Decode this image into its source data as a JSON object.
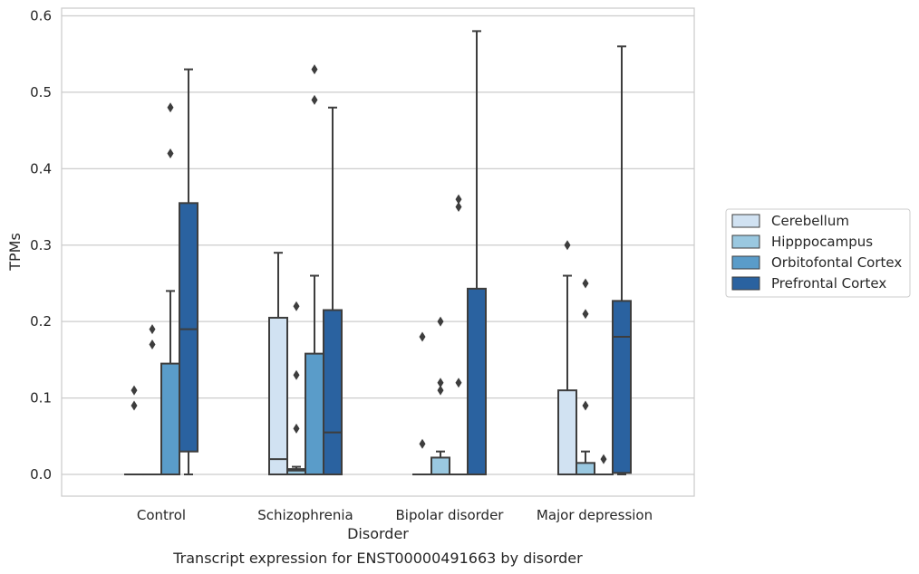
{
  "chart_data": {
    "type": "box",
    "title": "",
    "caption": "Transcript expression for ENST00000491663 by disorder",
    "xlabel": "Disorder",
    "ylabel": "TPMs",
    "ylim": [
      -0.03,
      0.61
    ],
    "yticks": [
      "0.0",
      "0.1",
      "0.2",
      "0.3",
      "0.4",
      "0.5",
      "0.6"
    ],
    "grid": "horizontal",
    "legend_placement": "right",
    "categories": [
      "Control",
      "Schizophrenia",
      "Bipolar disorder",
      "Major depression"
    ],
    "series": [
      {
        "name": "Cerebellum",
        "color": "#d1e2f2",
        "boxes": [
          {
            "q1": 0.0,
            "median": 0.0,
            "q3": 0.0,
            "whislo": 0.0,
            "whishi": 0.0,
            "fliers": [
              0.11,
              0.09
            ]
          },
          {
            "q1": 0.0,
            "median": 0.02,
            "q3": 0.205,
            "whislo": 0.0,
            "whishi": 0.29,
            "fliers": []
          },
          {
            "q1": 0.0,
            "median": 0.0,
            "q3": 0.0,
            "whislo": 0.0,
            "whishi": 0.0,
            "fliers": [
              0.18,
              0.04
            ]
          },
          {
            "q1": 0.0,
            "median": 0.0,
            "q3": 0.11,
            "whislo": 0.0,
            "whishi": 0.26,
            "fliers": [
              0.3
            ]
          }
        ]
      },
      {
        "name": "Hipppocampus",
        "color": "#9ac8e0",
        "boxes": [
          {
            "q1": 0.0,
            "median": 0.0,
            "q3": 0.0,
            "whislo": 0.0,
            "whishi": 0.0,
            "fliers": [
              0.19,
              0.17
            ]
          },
          {
            "q1": 0.0,
            "median": 0.005,
            "q3": 0.007,
            "whislo": 0.0,
            "whishi": 0.01,
            "fliers": [
              0.22,
              0.13,
              0.06
            ]
          },
          {
            "q1": 0.0,
            "median": 0.0,
            "q3": 0.022,
            "whislo": 0.0,
            "whishi": 0.03,
            "fliers": [
              0.2,
              0.12,
              0.11
            ]
          },
          {
            "q1": 0.0,
            "median": 0.0,
            "q3": 0.015,
            "whislo": 0.0,
            "whishi": 0.03,
            "fliers": [
              0.25,
              0.21,
              0.09
            ]
          }
        ]
      },
      {
        "name": "Orbitofontal Cortex",
        "color": "#5a9cc9",
        "boxes": [
          {
            "q1": 0.0,
            "median": 0.0,
            "q3": 0.145,
            "whislo": 0.0,
            "whishi": 0.24,
            "fliers": [
              0.48,
              0.42
            ]
          },
          {
            "q1": 0.0,
            "median": 0.0,
            "q3": 0.158,
            "whislo": 0.0,
            "whishi": 0.26,
            "fliers": [
              0.53,
              0.49
            ]
          },
          {
            "q1": 0.0,
            "median": 0.0,
            "q3": 0.0,
            "whislo": 0.0,
            "whishi": 0.0,
            "fliers": [
              0.36,
              0.35,
              0.12
            ]
          },
          {
            "q1": 0.0,
            "median": 0.0,
            "q3": 0.0,
            "whislo": 0.0,
            "whishi": 0.0,
            "fliers": [
              0.02
            ]
          }
        ]
      },
      {
        "name": "Prefrontal Cortex",
        "color": "#2a62a0",
        "boxes": [
          {
            "q1": 0.03,
            "median": 0.19,
            "q3": 0.355,
            "whislo": 0.0,
            "whishi": 0.53,
            "fliers": []
          },
          {
            "q1": 0.0,
            "median": 0.055,
            "q3": 0.215,
            "whislo": 0.0,
            "whishi": 0.48,
            "fliers": []
          },
          {
            "q1": 0.0,
            "median": 0.0,
            "q3": 0.243,
            "whislo": 0.0,
            "whishi": 0.58,
            "fliers": []
          },
          {
            "q1": 0.002,
            "median": 0.18,
            "q3": 0.227,
            "whislo": 0.0,
            "whishi": 0.56,
            "fliers": []
          }
        ]
      }
    ]
  }
}
